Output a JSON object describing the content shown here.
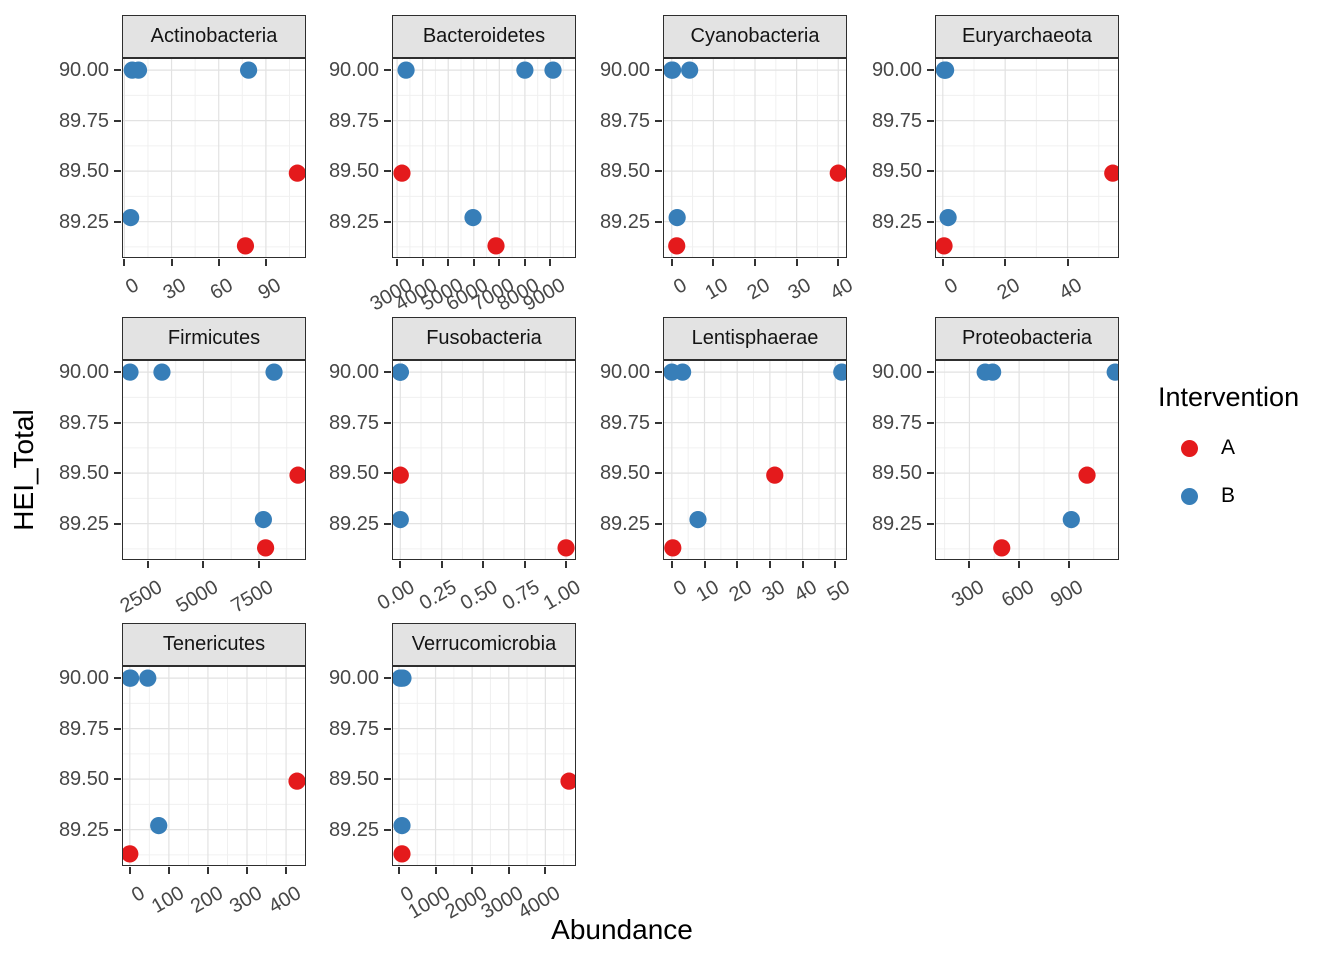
{
  "figure": {
    "background": "#FFFFFF"
  },
  "style": {
    "strip_fill": "#E3E3E3",
    "panel_border": "#2E2E2E",
    "grid_major": "#E2E2E2",
    "grid_minor": "#F0F0F0",
    "tick_text": "#474747",
    "point_radius": 8.6
  },
  "legend": {
    "title": "Intervention",
    "items": [
      {
        "label": "A",
        "color": "#E41A1C"
      },
      {
        "label": "B",
        "color": "#377EB8"
      }
    ]
  },
  "chart_data": {
    "type": "scatter",
    "x_label": "Abundance",
    "y_label": "HEI_Total",
    "legend_title": "Intervention",
    "grid": true,
    "legend_position": "right",
    "ylim": [
      89.07,
      90.06
    ],
    "y_ticks": [
      {
        "value": 89.25,
        "label": "89.25"
      },
      {
        "value": 89.5,
        "label": "89.50"
      },
      {
        "value": 89.75,
        "label": "89.75"
      },
      {
        "value": 90.0,
        "label": "90.00"
      }
    ],
    "y_minor": [
      89.125,
      89.375,
      89.625,
      89.875
    ],
    "groups": {
      "A": "#E41A1C",
      "B": "#377EB8"
    },
    "facets": [
      {
        "label": "Actinobacteria",
        "row": 0,
        "col": 0,
        "xlim": [
          -1.5,
          115.5
        ],
        "xticks": [
          0,
          30,
          60,
          90
        ],
        "xtick_labels": [
          "0",
          "30",
          "60",
          "90"
        ],
        "points": [
          {
            "x": 5,
            "y": 90.0,
            "group": "B"
          },
          {
            "x": 9,
            "y": 90.0,
            "group": "B"
          },
          {
            "x": 79,
            "y": 90.0,
            "group": "B"
          },
          {
            "x": 4,
            "y": 89.27,
            "group": "B"
          },
          {
            "x": 110,
            "y": 89.49,
            "group": "A"
          },
          {
            "x": 77,
            "y": 89.13,
            "group": "A"
          }
        ]
      },
      {
        "label": "Bacteroidetes",
        "row": 0,
        "col": 1,
        "xlim": [
          2800,
          10000
        ],
        "xticks": [
          3000,
          4000,
          5000,
          6000,
          7000,
          8000,
          9000
        ],
        "xtick_labels": [
          "3000",
          "4000",
          "5000",
          "6000",
          "7000",
          "8000",
          "9000"
        ],
        "points": [
          {
            "x": 3350,
            "y": 90.0,
            "group": "B"
          },
          {
            "x": 8000,
            "y": 90.0,
            "group": "B"
          },
          {
            "x": 9100,
            "y": 90.0,
            "group": "B"
          },
          {
            "x": 5970,
            "y": 89.27,
            "group": "B"
          },
          {
            "x": 3190,
            "y": 89.49,
            "group": "A"
          },
          {
            "x": 6870,
            "y": 89.13,
            "group": "A"
          }
        ]
      },
      {
        "label": "Cyanobacteria",
        "row": 0,
        "col": 2,
        "xlim": [
          -2.1,
          42.1
        ],
        "xticks": [
          0,
          10,
          20,
          30,
          40
        ],
        "xtick_labels": [
          "0",
          "10",
          "20",
          "30",
          "40"
        ],
        "points": [
          {
            "x": 0,
            "y": 90.0,
            "group": "B"
          },
          {
            "x": 4.3,
            "y": 90.0,
            "group": "B"
          },
          {
            "x": 0.2,
            "y": 90.0,
            "group": "B"
          },
          {
            "x": 1.3,
            "y": 89.27,
            "group": "B"
          },
          {
            "x": 40,
            "y": 89.49,
            "group": "A"
          },
          {
            "x": 1.2,
            "y": 89.13,
            "group": "A"
          }
        ]
      },
      {
        "label": "Euryarchaeota",
        "row": 0,
        "col": 3,
        "xlim": [
          -2.5,
          56.5
        ],
        "xticks": [
          0,
          20,
          40
        ],
        "xtick_labels": [
          "0",
          "20",
          "40"
        ],
        "points": [
          {
            "x": 0.7,
            "y": 90.0,
            "group": "B"
          },
          {
            "x": 0.5,
            "y": 90.0,
            "group": "B"
          },
          {
            "x": 0.9,
            "y": 90.0,
            "group": "B"
          },
          {
            "x": 1.7,
            "y": 89.27,
            "group": "B"
          },
          {
            "x": 54.5,
            "y": 89.49,
            "group": "A"
          },
          {
            "x": 0.4,
            "y": 89.13,
            "group": "A"
          }
        ]
      },
      {
        "label": "Firmicutes",
        "row": 1,
        "col": 0,
        "xlim": [
          1330,
          9620
        ],
        "xticks": [
          2500,
          5000,
          7500
        ],
        "xtick_labels": [
          "2500",
          "5000",
          "7500"
        ],
        "points": [
          {
            "x": 1690,
            "y": 90.0,
            "group": "B"
          },
          {
            "x": 3130,
            "y": 90.0,
            "group": "B"
          },
          {
            "x": 8180,
            "y": 90.0,
            "group": "B"
          },
          {
            "x": 7700,
            "y": 89.27,
            "group": "B"
          },
          {
            "x": 9260,
            "y": 89.49,
            "group": "A"
          },
          {
            "x": 7800,
            "y": 89.13,
            "group": "A"
          }
        ]
      },
      {
        "label": "Fusobacteria",
        "row": 1,
        "col": 1,
        "xlim": [
          -0.05,
          1.06
        ],
        "xticks": [
          0,
          0.25,
          0.5,
          0.75,
          1
        ],
        "xtick_labels": [
          "0.00",
          "0.25",
          "0.50",
          "0.75",
          "1.00"
        ],
        "points": [
          {
            "x": 0,
            "y": 90.0,
            "group": "B"
          },
          {
            "x": 0,
            "y": 90.0,
            "group": "B"
          },
          {
            "x": 0,
            "y": 90.0,
            "group": "B"
          },
          {
            "x": 0,
            "y": 89.27,
            "group": "B"
          },
          {
            "x": 0,
            "y": 89.49,
            "group": "A"
          },
          {
            "x": 1,
            "y": 89.13,
            "group": "A"
          }
        ]
      },
      {
        "label": "Lentisphaerae",
        "row": 1,
        "col": 2,
        "xlim": [
          -2.7,
          53.6
        ],
        "xticks": [
          0,
          10,
          20,
          30,
          40,
          50
        ],
        "xtick_labels": [
          "0",
          "10",
          "20",
          "30",
          "40",
          "50"
        ],
        "points": [
          {
            "x": 0,
            "y": 90.0,
            "group": "B"
          },
          {
            "x": 3.3,
            "y": 90.0,
            "group": "B"
          },
          {
            "x": 52,
            "y": 90.0,
            "group": "B"
          },
          {
            "x": 8,
            "y": 89.27,
            "group": "B"
          },
          {
            "x": 31.5,
            "y": 89.49,
            "group": "A"
          },
          {
            "x": 0.3,
            "y": 89.13,
            "group": "A"
          }
        ]
      },
      {
        "label": "Proteobacteria",
        "row": 1,
        "col": 3,
        "xlim": [
          92,
          1203
        ],
        "xticks": [
          300,
          600,
          900
        ],
        "xtick_labels": [
          "300",
          "600",
          "900"
        ],
        "points": [
          {
            "x": 395,
            "y": 90.0,
            "group": "B"
          },
          {
            "x": 440,
            "y": 90.0,
            "group": "B"
          },
          {
            "x": 1180,
            "y": 90.0,
            "group": "B"
          },
          {
            "x": 915,
            "y": 89.27,
            "group": "B"
          },
          {
            "x": 1010,
            "y": 89.49,
            "group": "A"
          },
          {
            "x": 495,
            "y": 89.13,
            "group": "A"
          }
        ]
      },
      {
        "label": "Tenericutes",
        "row": 2,
        "col": 0,
        "xlim": [
          -20,
          451
        ],
        "xticks": [
          0,
          100,
          200,
          300,
          400
        ],
        "xtick_labels": [
          "0",
          "100",
          "200",
          "300",
          "400"
        ],
        "points": [
          {
            "x": 0,
            "y": 90.0,
            "group": "B"
          },
          {
            "x": 46,
            "y": 90.0,
            "group": "B"
          },
          {
            "x": 2,
            "y": 90.0,
            "group": "B"
          },
          {
            "x": 74,
            "y": 89.27,
            "group": "B"
          },
          {
            "x": 428,
            "y": 89.49,
            "group": "A"
          },
          {
            "x": 0,
            "y": 89.13,
            "group": "A"
          }
        ]
      },
      {
        "label": "Verrucomicrobia",
        "row": 2,
        "col": 1,
        "xlim": [
          -190,
          4837
        ],
        "xticks": [
          0,
          1000,
          2000,
          3000,
          4000
        ],
        "xtick_labels": [
          "0",
          "1000",
          "2000",
          "3000",
          "4000"
        ],
        "points": [
          {
            "x": 110,
            "y": 90.0,
            "group": "B"
          },
          {
            "x": 30,
            "y": 90.0,
            "group": "B"
          },
          {
            "x": 60,
            "y": 90.0,
            "group": "B"
          },
          {
            "x": 83,
            "y": 89.27,
            "group": "B"
          },
          {
            "x": 4646,
            "y": 89.49,
            "group": "A"
          },
          {
            "x": 83,
            "y": 89.13,
            "group": "A"
          }
        ]
      }
    ]
  }
}
